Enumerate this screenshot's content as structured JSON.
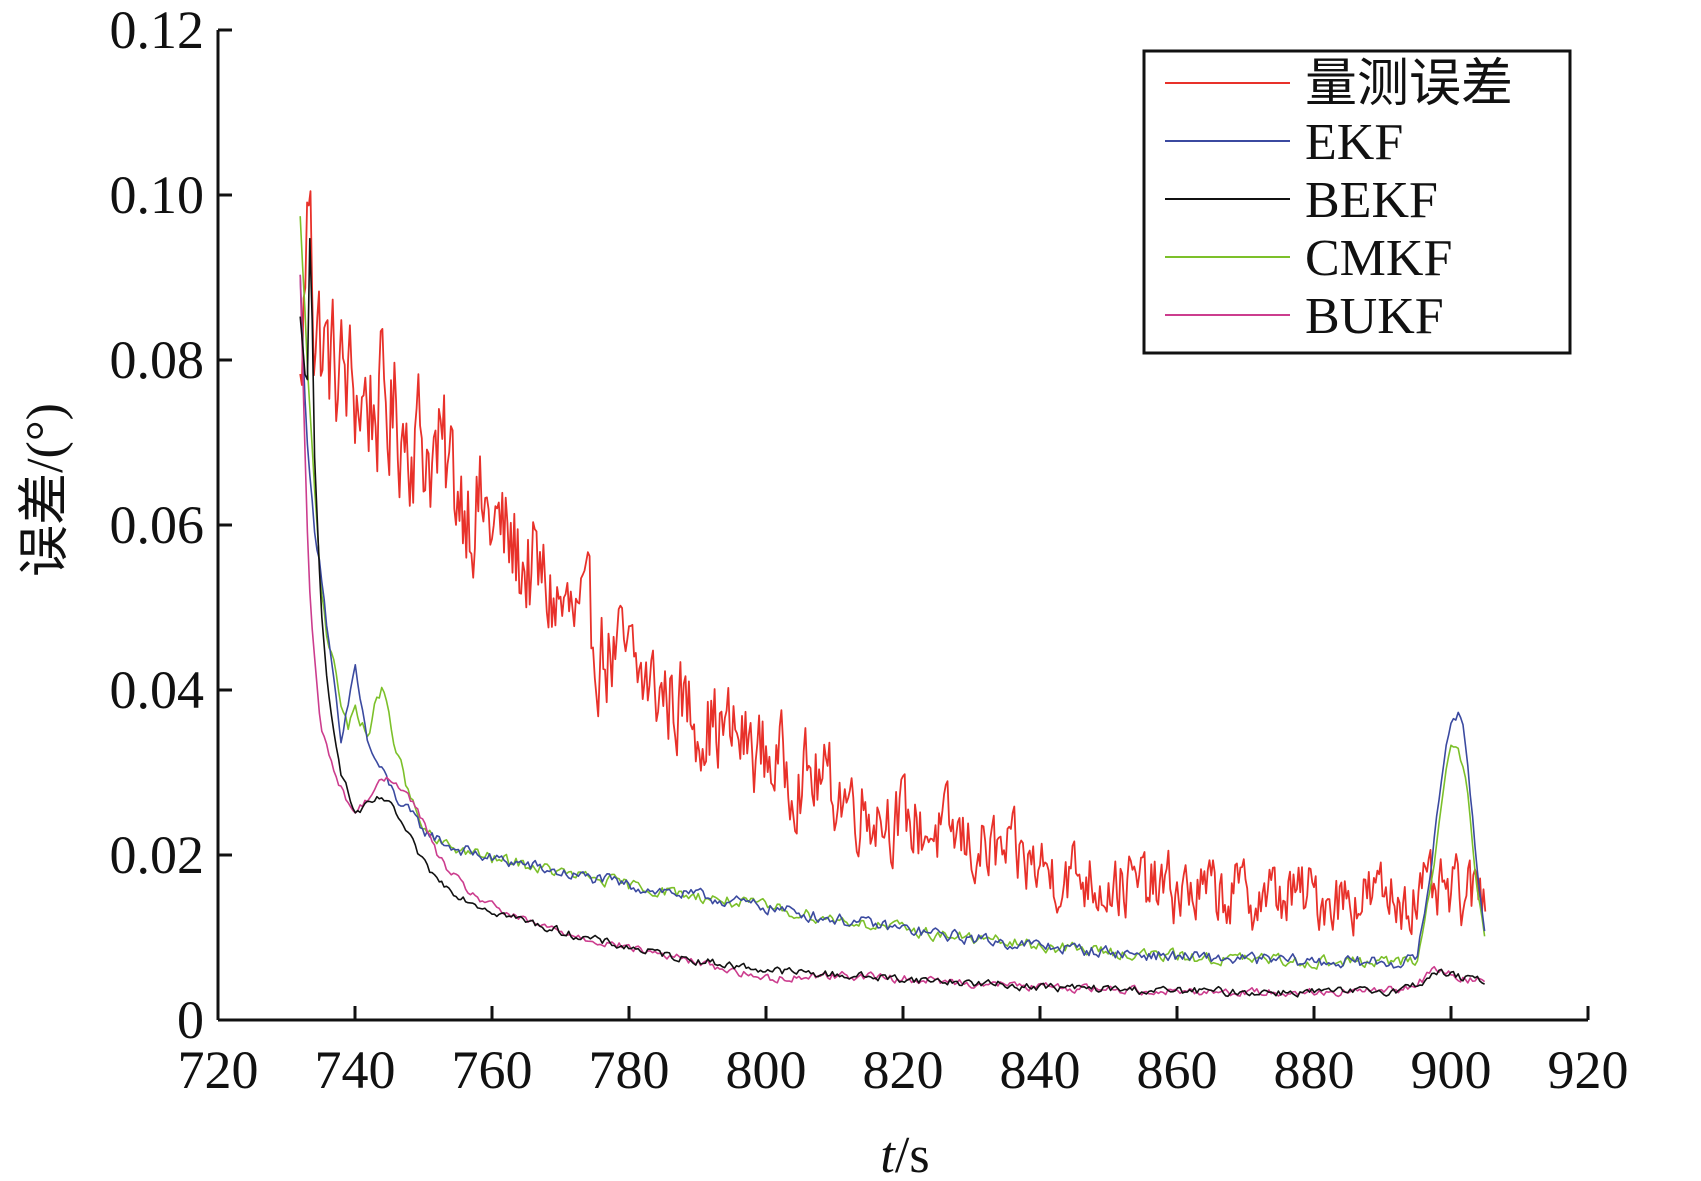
{
  "chart_data": {
    "type": "line",
    "title": "",
    "xlabel_italic": "t",
    "xlabel_rest": "/s",
    "ylabel": "误差/(°)",
    "xlim": [
      720,
      920
    ],
    "ylim": [
      0,
      0.12
    ],
    "xticks": [
      720,
      740,
      760,
      780,
      800,
      820,
      840,
      860,
      880,
      900,
      920
    ],
    "yticks": [
      0,
      0.02,
      0.04,
      0.06,
      0.08,
      0.1,
      0.12
    ],
    "ytick_labels": [
      "0",
      "0.02",
      "0.04",
      "0.06",
      "0.08",
      "0.10",
      "0.12"
    ],
    "grid": false,
    "legend_position": "top-right",
    "series": [
      {
        "name": "量测误差",
        "color": "#e8312a",
        "x": [
          732,
          733,
          733.5,
          734,
          736,
          738,
          740,
          742,
          744,
          746,
          748,
          750,
          752,
          754,
          756,
          758,
          760,
          762,
          764,
          766,
          768,
          770,
          772,
          774,
          776,
          778,
          780,
          782,
          784,
          786,
          788,
          790,
          792,
          794,
          796,
          798,
          800,
          802,
          804,
          806,
          808,
          810,
          812,
          814,
          816,
          818,
          820,
          822,
          824,
          826,
          828,
          830,
          832,
          834,
          836,
          838,
          840,
          842,
          844,
          846,
          848,
          850,
          852,
          854,
          856,
          858,
          860,
          862,
          864,
          866,
          868,
          870,
          872,
          874,
          876,
          878,
          880,
          882,
          884,
          886,
          888,
          890,
          892,
          894,
          896,
          898,
          900,
          902,
          904,
          905
        ],
        "y": [
          0.075,
          0.095,
          0.105,
          0.085,
          0.08,
          0.078,
          0.076,
          0.075,
          0.074,
          0.073,
          0.072,
          0.07,
          0.068,
          0.066,
          0.064,
          0.062,
          0.06,
          0.058,
          0.056,
          0.054,
          0.052,
          0.05,
          0.048,
          0.047,
          0.045,
          0.044,
          0.043,
          0.041,
          0.04,
          0.039,
          0.038,
          0.037,
          0.036,
          0.035,
          0.034,
          0.033,
          0.032,
          0.031,
          0.03,
          0.0295,
          0.029,
          0.028,
          0.027,
          0.026,
          0.0255,
          0.025,
          0.024,
          0.0235,
          0.023,
          0.0225,
          0.022,
          0.021,
          0.0205,
          0.02,
          0.0195,
          0.019,
          0.0185,
          0.018,
          0.0178,
          0.0175,
          0.017,
          0.0168,
          0.0165,
          0.0162,
          0.016,
          0.0158,
          0.0156,
          0.0155,
          0.0154,
          0.0153,
          0.0152,
          0.0151,
          0.015,
          0.015,
          0.015,
          0.015,
          0.015,
          0.015,
          0.015,
          0.015,
          0.015,
          0.015,
          0.015,
          0.015,
          0.015,
          0.015,
          0.015,
          0.015,
          0.015,
          0.016
        ]
      },
      {
        "name": "EKF",
        "color": "#3b4aa0",
        "x": [
          732,
          733,
          734,
          735,
          736,
          737,
          738,
          739,
          740,
          741,
          742,
          744,
          746,
          748,
          750,
          752,
          754,
          756,
          758,
          760,
          764,
          768,
          772,
          776,
          780,
          784,
          788,
          792,
          796,
          800,
          804,
          808,
          812,
          816,
          820,
          824,
          828,
          832,
          836,
          840,
          844,
          848,
          852,
          856,
          860,
          864,
          868,
          872,
          876,
          880,
          884,
          888,
          892,
          894,
          895,
          896,
          897,
          898,
          899,
          900,
          901,
          902,
          903,
          904,
          905
        ],
        "y": [
          0.09,
          0.07,
          0.06,
          0.055,
          0.047,
          0.04,
          0.033,
          0.038,
          0.043,
          0.038,
          0.033,
          0.03,
          0.027,
          0.025,
          0.023,
          0.022,
          0.021,
          0.0205,
          0.02,
          0.0195,
          0.019,
          0.0182,
          0.0175,
          0.017,
          0.0163,
          0.0158,
          0.0152,
          0.0148,
          0.0142,
          0.0137,
          0.0131,
          0.0125,
          0.012,
          0.0115,
          0.011,
          0.0105,
          0.0101,
          0.0097,
          0.0093,
          0.009,
          0.0087,
          0.0084,
          0.0081,
          0.0079,
          0.0077,
          0.0075,
          0.0074,
          0.0073,
          0.0072,
          0.0071,
          0.007,
          0.007,
          0.007,
          0.0071,
          0.0078,
          0.012,
          0.018,
          0.025,
          0.032,
          0.0365,
          0.0372,
          0.034,
          0.026,
          0.017,
          0.01
        ]
      },
      {
        "name": "BEKF",
        "color": "#111111",
        "x": [
          732,
          733,
          733.5,
          734,
          735,
          736,
          737,
          738,
          740,
          742,
          744,
          746,
          748,
          750,
          752,
          754,
          756,
          758,
          760,
          764,
          768,
          772,
          776,
          780,
          784,
          788,
          792,
          796,
          800,
          804,
          808,
          812,
          816,
          820,
          824,
          828,
          832,
          836,
          840,
          844,
          848,
          852,
          856,
          860,
          864,
          868,
          872,
          876,
          880,
          884,
          888,
          892,
          894,
          896,
          898,
          900,
          902,
          904,
          905
        ],
        "y": [
          0.085,
          0.075,
          0.1,
          0.07,
          0.05,
          0.04,
          0.035,
          0.03,
          0.025,
          0.026,
          0.027,
          0.025,
          0.022,
          0.019,
          0.017,
          0.0158,
          0.0148,
          0.014,
          0.0133,
          0.0122,
          0.0112,
          0.0103,
          0.0095,
          0.0088,
          0.0081,
          0.0075,
          0.007,
          0.0065,
          0.0061,
          0.0058,
          0.0056,
          0.0054,
          0.0052,
          0.005,
          0.0048,
          0.0046,
          0.0044,
          0.0042,
          0.004,
          0.0039,
          0.0038,
          0.0037,
          0.0036,
          0.0035,
          0.0035,
          0.0034,
          0.0034,
          0.0034,
          0.0034,
          0.0034,
          0.0035,
          0.0036,
          0.004,
          0.0048,
          0.0058,
          0.0055,
          0.005,
          0.0048,
          0.0048
        ]
      },
      {
        "name": "CMKF",
        "color": "#7cc02a",
        "x": [
          732,
          733,
          734,
          735,
          736,
          737,
          738,
          739,
          740,
          741,
          742,
          743,
          744,
          746,
          748,
          750,
          752,
          754,
          756,
          758,
          760,
          764,
          768,
          772,
          776,
          780,
          784,
          788,
          792,
          796,
          800,
          804,
          808,
          812,
          816,
          820,
          824,
          828,
          832,
          836,
          840,
          844,
          848,
          852,
          856,
          860,
          864,
          868,
          872,
          876,
          880,
          884,
          888,
          892,
          894,
          895,
          896,
          897,
          898,
          899,
          900,
          901,
          902,
          903,
          904,
          905
        ],
        "y": [
          0.097,
          0.08,
          0.065,
          0.053,
          0.046,
          0.044,
          0.038,
          0.035,
          0.038,
          0.036,
          0.034,
          0.039,
          0.04,
          0.033,
          0.027,
          0.023,
          0.0215,
          0.021,
          0.0205,
          0.02,
          0.0195,
          0.019,
          0.0182,
          0.0175,
          0.017,
          0.0163,
          0.0158,
          0.0152,
          0.0148,
          0.0142,
          0.0137,
          0.0131,
          0.0125,
          0.012,
          0.0115,
          0.011,
          0.0105,
          0.0101,
          0.0097,
          0.0093,
          0.009,
          0.0087,
          0.0084,
          0.0081,
          0.0079,
          0.0077,
          0.0075,
          0.0074,
          0.0073,
          0.0072,
          0.0071,
          0.007,
          0.007,
          0.007,
          0.007,
          0.0075,
          0.011,
          0.016,
          0.022,
          0.029,
          0.033,
          0.034,
          0.03,
          0.023,
          0.015,
          0.009
        ]
      },
      {
        "name": "BUKF",
        "color": "#cc3d8e",
        "x": [
          732,
          733,
          733.5,
          734,
          735,
          736,
          737,
          738,
          740,
          742,
          744,
          746,
          748,
          750,
          752,
          754,
          756,
          758,
          760,
          764,
          768,
          772,
          776,
          780,
          784,
          788,
          792,
          796,
          800,
          804,
          808,
          812,
          816,
          820,
          824,
          828,
          832,
          836,
          840,
          844,
          848,
          852,
          856,
          860,
          864,
          868,
          872,
          876,
          880,
          884,
          888,
          892,
          894,
          896,
          898,
          900,
          902,
          904,
          905
        ],
        "y": [
          0.09,
          0.06,
          0.05,
          0.045,
          0.035,
          0.033,
          0.03,
          0.028,
          0.025,
          0.027,
          0.029,
          0.029,
          0.027,
          0.024,
          0.02,
          0.0178,
          0.016,
          0.0148,
          0.0138,
          0.0122,
          0.0112,
          0.0103,
          0.0095,
          0.0088,
          0.0081,
          0.0074,
          0.0066,
          0.0058,
          0.005,
          0.0052,
          0.0054,
          0.0054,
          0.0052,
          0.005,
          0.0048,
          0.0046,
          0.0044,
          0.0042,
          0.004,
          0.0039,
          0.0038,
          0.0037,
          0.0036,
          0.0035,
          0.0035,
          0.0034,
          0.0034,
          0.0034,
          0.0034,
          0.0034,
          0.0035,
          0.0036,
          0.0042,
          0.005,
          0.0062,
          0.0055,
          0.005,
          0.0048,
          0.0048
        ]
      }
    ]
  }
}
